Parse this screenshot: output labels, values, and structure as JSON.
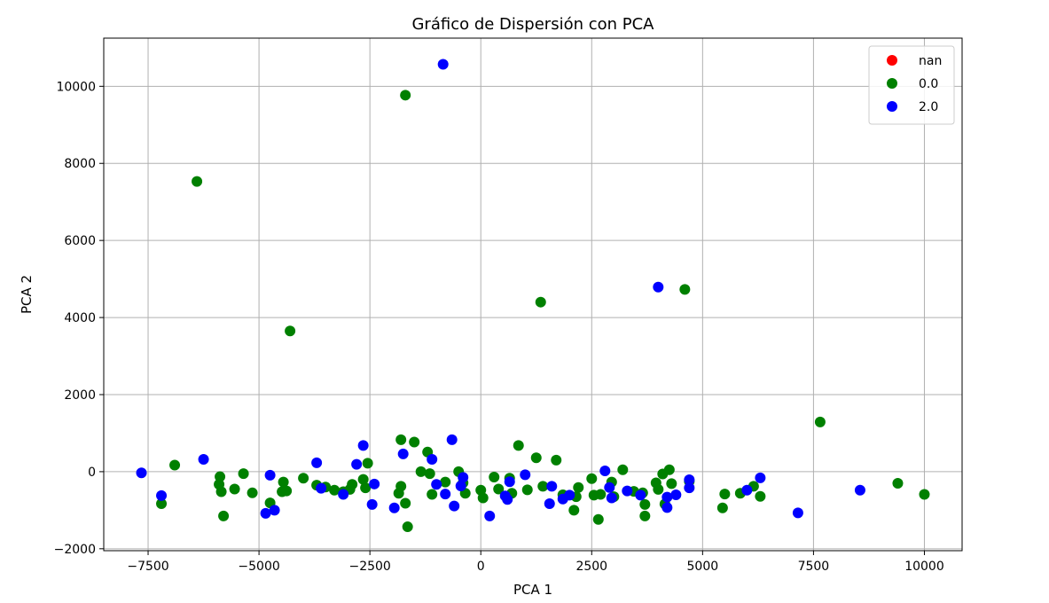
{
  "chart_data": {
    "type": "scatter",
    "title": "Gráfico de Dispersión con PCA",
    "xlabel": "PCA 1",
    "ylabel": "PCA 2",
    "xlim": [
      -8500,
      10850
    ],
    "ylim": [
      -2050,
      11250
    ],
    "xticks": [
      -7500,
      -5000,
      -2500,
      0,
      2500,
      5000,
      7500,
      10000
    ],
    "yticks": [
      -2000,
      0,
      2000,
      4000,
      6000,
      8000,
      10000
    ],
    "xtick_labels": [
      "−7500",
      "−5000",
      "−2500",
      "0",
      "2500",
      "5000",
      "7500",
      "10000"
    ],
    "ytick_labels": [
      "−2000",
      "0",
      "2000",
      "4000",
      "6000",
      "8000",
      "10000"
    ],
    "grid": true,
    "legend_position": "top-right",
    "series": [
      {
        "name": "nan",
        "color": "#ff0000",
        "points": []
      },
      {
        "name": "0.0",
        "color": "#008000",
        "points": [
          [
            -7200,
            -830
          ],
          [
            -6900,
            170
          ],
          [
            -6400,
            7530
          ],
          [
            -5880,
            -130
          ],
          [
            -5900,
            -330
          ],
          [
            -5850,
            -520
          ],
          [
            -5800,
            -1150
          ],
          [
            -5550,
            -450
          ],
          [
            -5350,
            -50
          ],
          [
            -5150,
            -550
          ],
          [
            -4750,
            -810
          ],
          [
            -4480,
            -520
          ],
          [
            -4450,
            -270
          ],
          [
            -4380,
            -500
          ],
          [
            -4300,
            3650
          ],
          [
            -4000,
            -170
          ],
          [
            -3700,
            -350
          ],
          [
            -3500,
            -400
          ],
          [
            -3300,
            -480
          ],
          [
            -3100,
            -520
          ],
          [
            -2950,
            -460
          ],
          [
            -2900,
            -330
          ],
          [
            -2650,
            -200
          ],
          [
            -2600,
            -420
          ],
          [
            -2550,
            220
          ],
          [
            -1850,
            -560
          ],
          [
            -1800,
            -380
          ],
          [
            -1800,
            830
          ],
          [
            -1700,
            -820
          ],
          [
            -1700,
            9770
          ],
          [
            -1650,
            -1430
          ],
          [
            -1500,
            770
          ],
          [
            -1350,
            0
          ],
          [
            -1200,
            510
          ],
          [
            -1150,
            -50
          ],
          [
            -1100,
            -590
          ],
          [
            -800,
            -270
          ],
          [
            -500,
            0
          ],
          [
            -400,
            -290
          ],
          [
            -350,
            -560
          ],
          [
            0,
            -480
          ],
          [
            50,
            -680
          ],
          [
            300,
            -140
          ],
          [
            400,
            -450
          ],
          [
            650,
            -170
          ],
          [
            700,
            -560
          ],
          [
            850,
            680
          ],
          [
            1050,
            -470
          ],
          [
            1250,
            360
          ],
          [
            1350,
            4400
          ],
          [
            1400,
            -380
          ],
          [
            1700,
            300
          ],
          [
            1850,
            -600
          ],
          [
            2100,
            -1000
          ],
          [
            2150,
            -650
          ],
          [
            2200,
            -410
          ],
          [
            2500,
            -180
          ],
          [
            2550,
            -610
          ],
          [
            2650,
            -1240
          ],
          [
            2700,
            -590
          ],
          [
            2950,
            -270
          ],
          [
            3000,
            -650
          ],
          [
            3200,
            50
          ],
          [
            3450,
            -510
          ],
          [
            3650,
            -550
          ],
          [
            3700,
            -850
          ],
          [
            3700,
            -1150
          ],
          [
            3950,
            -290
          ],
          [
            4000,
            -460
          ],
          [
            4100,
            -60
          ],
          [
            4150,
            -840
          ],
          [
            4250,
            50
          ],
          [
            4300,
            -310
          ],
          [
            4600,
            4730
          ],
          [
            4700,
            -250
          ],
          [
            5450,
            -940
          ],
          [
            5500,
            -580
          ],
          [
            5850,
            -560
          ],
          [
            6150,
            -380
          ],
          [
            6300,
            -640
          ],
          [
            7650,
            1290
          ],
          [
            9400,
            -300
          ],
          [
            10000,
            -590
          ]
        ]
      },
      {
        "name": "2.0",
        "color": "#0000ff",
        "points": [
          [
            -7650,
            -30
          ],
          [
            -7200,
            -620
          ],
          [
            -6250,
            320
          ],
          [
            -4850,
            -1080
          ],
          [
            -4750,
            -90
          ],
          [
            -4650,
            -1000
          ],
          [
            -3700,
            230
          ],
          [
            -3600,
            -430
          ],
          [
            -3100,
            -590
          ],
          [
            -2800,
            190
          ],
          [
            -2650,
            680
          ],
          [
            -2450,
            -850
          ],
          [
            -2400,
            -320
          ],
          [
            -1950,
            -940
          ],
          [
            -1750,
            460
          ],
          [
            -1100,
            320
          ],
          [
            -1000,
            -330
          ],
          [
            -850,
            10570
          ],
          [
            -800,
            -580
          ],
          [
            -650,
            830
          ],
          [
            -600,
            -890
          ],
          [
            -450,
            -370
          ],
          [
            -400,
            -150
          ],
          [
            200,
            -1150
          ],
          [
            550,
            -630
          ],
          [
            600,
            -720
          ],
          [
            650,
            -260
          ],
          [
            1000,
            -80
          ],
          [
            1550,
            -830
          ],
          [
            1600,
            -380
          ],
          [
            1850,
            -710
          ],
          [
            2000,
            -610
          ],
          [
            2800,
            20
          ],
          [
            2900,
            -410
          ],
          [
            2950,
            -680
          ],
          [
            3300,
            -500
          ],
          [
            3600,
            -610
          ],
          [
            4000,
            4790
          ],
          [
            4200,
            -930
          ],
          [
            4200,
            -660
          ],
          [
            4400,
            -600
          ],
          [
            4700,
            -210
          ],
          [
            4700,
            -420
          ],
          [
            6000,
            -480
          ],
          [
            6300,
            -160
          ],
          [
            7150,
            -1070
          ],
          [
            8550,
            -480
          ]
        ]
      }
    ]
  }
}
